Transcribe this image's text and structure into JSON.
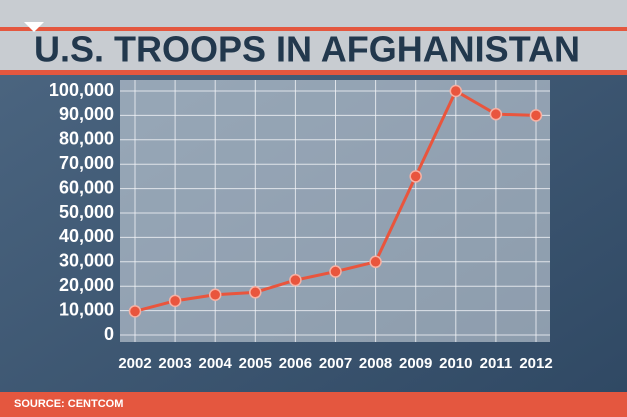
{
  "chart_data": {
    "type": "line",
    "title": "U.S. TROOPS IN AFGHANISTAN",
    "source": "SOURCE: CENTCOM",
    "categories": [
      "2002",
      "2003",
      "2004",
      "2005",
      "2006",
      "2007",
      "2008",
      "2009",
      "2010",
      "2011",
      "2012"
    ],
    "values": [
      9700,
      14000,
      16500,
      17500,
      22500,
      26000,
      30000,
      65000,
      100000,
      90500,
      90000
    ],
    "color": "#e9553d",
    "ylim": [
      0,
      100000
    ],
    "yticks": [
      0,
      {
        "value": 10000,
        "label": "10,000"
      },
      {
        "value": 20000,
        "label": "20,000"
      },
      {
        "value": 30000,
        "label": "30,000"
      },
      {
        "value": 40000,
        "label": "40,000"
      },
      {
        "value": 50000,
        "label": "50,000"
      },
      {
        "value": 60000,
        "label": "60,000"
      },
      {
        "value": 70000,
        "label": "70,000"
      },
      {
        "value": 80000,
        "label": "80,000"
      },
      {
        "value": 90000,
        "label": "90,000"
      },
      {
        "value": 100000,
        "label": "100,000"
      }
    ],
    "grid": true
  }
}
